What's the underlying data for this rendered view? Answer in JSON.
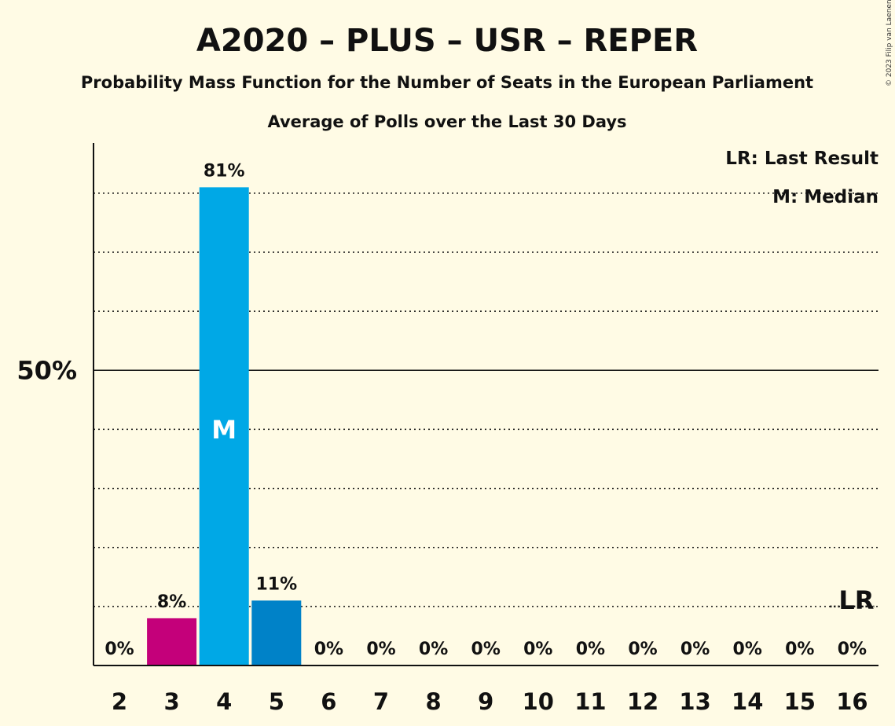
{
  "chart_data": {
    "type": "bar",
    "title": "A2020 – PLUS – USR – REPER",
    "subtitle": "Probability Mass Function for the Number of Seats in the European Parliament",
    "subtitle2": "Average of Polls over the Last 30 Days",
    "copyright": "© 2023 Filip van Laenen",
    "categories": [
      "2",
      "3",
      "4",
      "5",
      "6",
      "7",
      "8",
      "9",
      "10",
      "11",
      "12",
      "13",
      "14",
      "15",
      "16"
    ],
    "values": [
      0,
      8,
      81,
      11,
      0,
      0,
      0,
      0,
      0,
      0,
      0,
      0,
      0,
      0,
      0
    ],
    "value_labels": [
      "0%",
      "8%",
      "81%",
      "11%",
      "0%",
      "0%",
      "0%",
      "0%",
      "0%",
      "0%",
      "0%",
      "0%",
      "0%",
      "0%",
      "0%"
    ],
    "bar_colors": [
      "#C4007A",
      "#C4007A",
      "#00A8E6",
      "#0082C8",
      "#C4007A",
      "#C4007A",
      "#C4007A",
      "#C4007A",
      "#C4007A",
      "#C4007A",
      "#C4007A",
      "#C4007A",
      "#C4007A",
      "#C4007A",
      "#C4007A"
    ],
    "ylim": [
      0,
      88.5
    ],
    "y_ticks": [
      {
        "value": 50,
        "label": "50%"
      }
    ],
    "gridlines": [
      10,
      20,
      30,
      40,
      60,
      70,
      80
    ],
    "median_category": "4",
    "median_marker": "M",
    "last_result_category": "16",
    "last_result_marker": "LR",
    "last_result_level": 10,
    "legend": {
      "position": "top-right",
      "items": [
        "LR: Last Result",
        "M: Median"
      ]
    },
    "grid": true
  }
}
